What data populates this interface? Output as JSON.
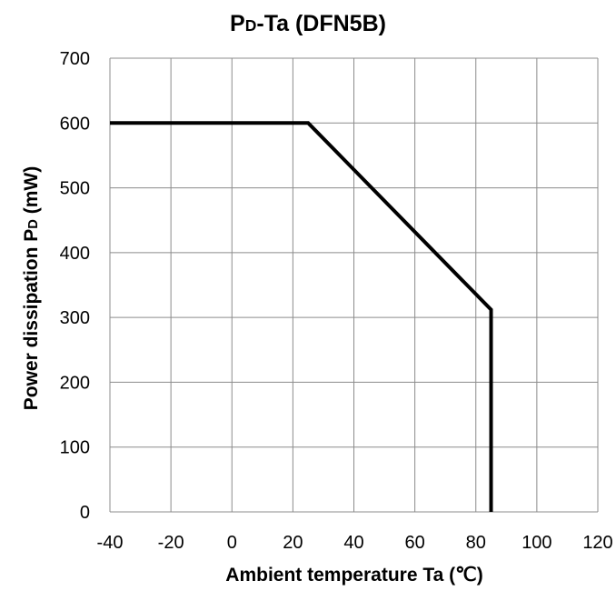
{
  "chart_data": {
    "type": "line",
    "title": {
      "main": "P",
      "sub": "D",
      "rest": "-Ta (DFN5B)"
    },
    "xlabel": "Ambient temperature Ta (℃)",
    "ylabel": {
      "main": "Power dissipation P",
      "sub": "D",
      "rest": " (mW)"
    },
    "xlim": [
      -40,
      120
    ],
    "ylim": [
      0,
      700
    ],
    "xticks": [
      -40,
      -20,
      0,
      20,
      40,
      60,
      80,
      100,
      120
    ],
    "yticks": [
      0,
      100,
      200,
      300,
      400,
      500,
      600,
      700
    ],
    "grid": true,
    "series": [
      {
        "x": [
          -40,
          25,
          85,
          85
        ],
        "y": [
          600,
          600,
          312,
          0
        ],
        "color": "#000000"
      }
    ]
  }
}
